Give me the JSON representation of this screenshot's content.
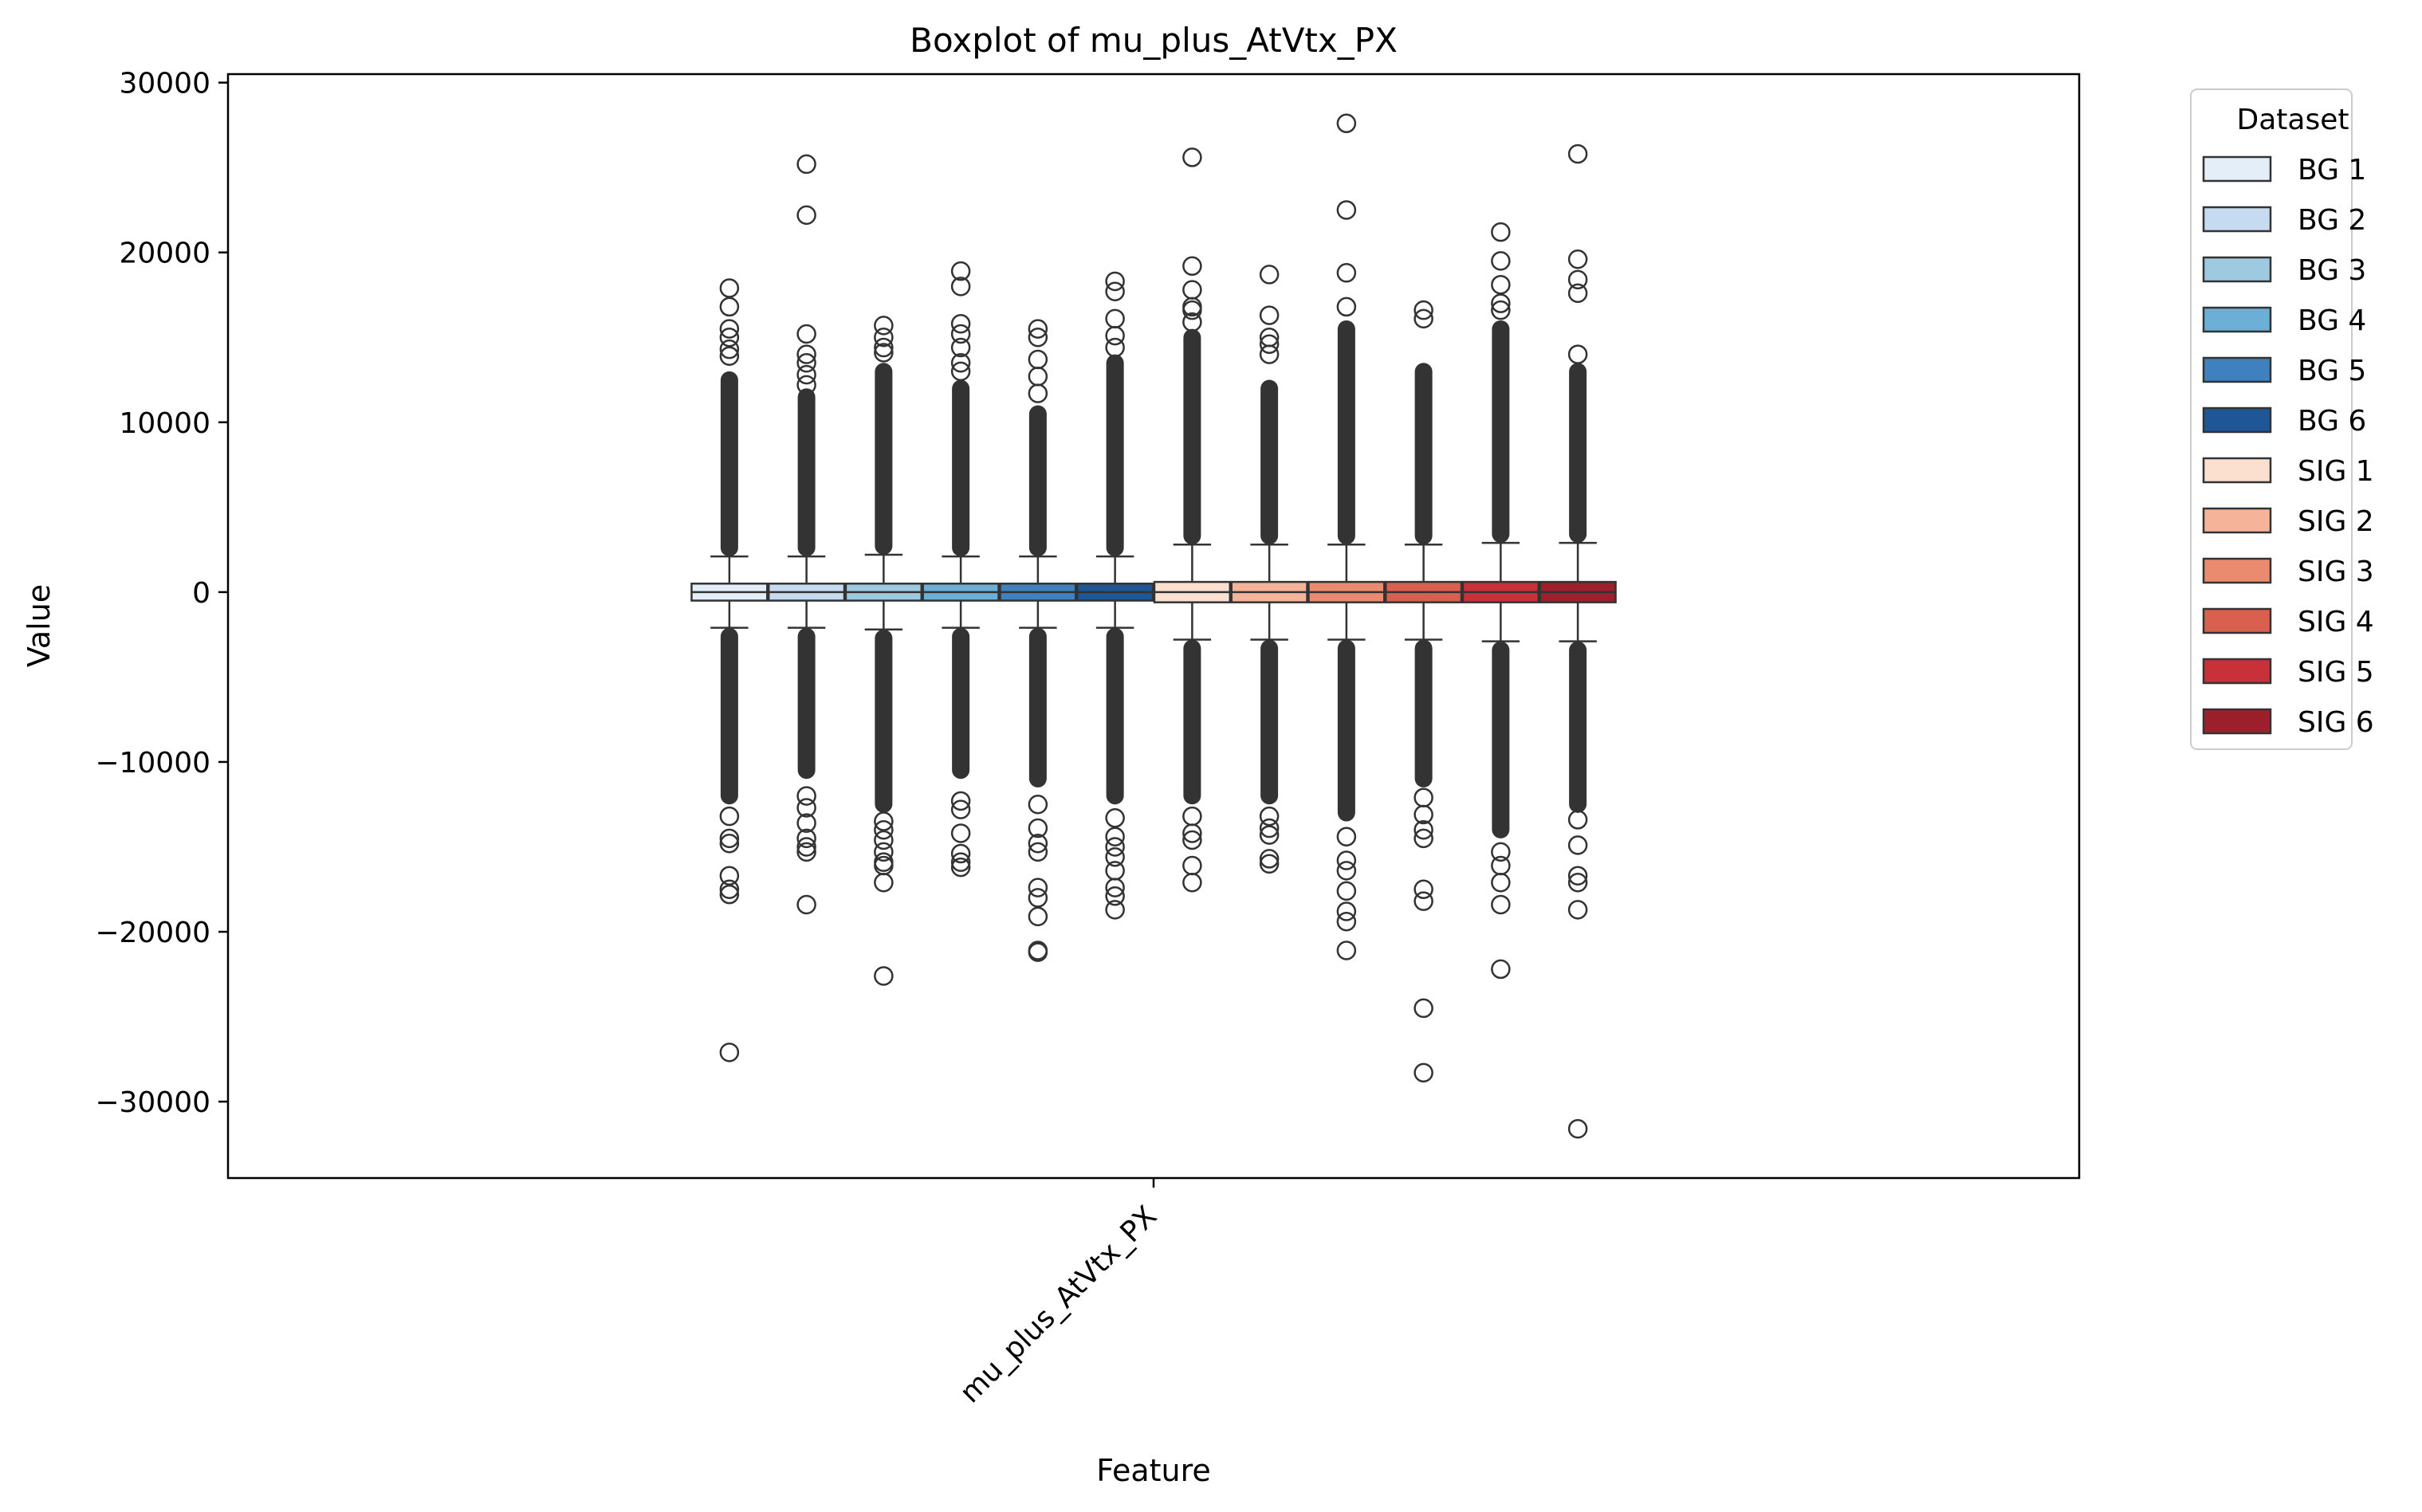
{
  "chart_data": {
    "type": "boxplot",
    "title": "Boxplot of mu_plus_AtVtx_PX",
    "xlabel": "Feature",
    "ylabel": "Value",
    "categories": [
      "mu_plus_AtVtx_PX"
    ],
    "ylim": [
      -34500,
      30500
    ],
    "yticks": [
      30000,
      20000,
      10000,
      0,
      -10000,
      -20000,
      -30000
    ],
    "ytick_labels": [
      "30000",
      "20000",
      "10000",
      "0",
      "−10000",
      "−20000",
      "−30000"
    ],
    "grid": false,
    "legend": {
      "title": "Dataset",
      "placement": "outside-top-right"
    },
    "series": [
      {
        "name": "BG 1",
        "color": "#e4eef9",
        "q1": -500,
        "median": 0,
        "q3": 500,
        "whisker_low": -2100,
        "whisker_high": 2100,
        "dense_low": [
          -12500,
          -2100
        ],
        "dense_high": [
          2100,
          13000
        ],
        "outliers": [
          17900,
          16800,
          15500,
          15000,
          14300,
          13900,
          -13200,
          -14500,
          -14800,
          -16700,
          -17500,
          -17800,
          -27100
        ]
      },
      {
        "name": "BG 2",
        "color": "#c6dbef",
        "q1": -500,
        "median": 0,
        "q3": 500,
        "whisker_low": -2100,
        "whisker_high": 2100,
        "dense_low": [
          -11000,
          -2100
        ],
        "dense_high": [
          2100,
          12000
        ],
        "outliers": [
          25200,
          22200,
          15200,
          14000,
          13500,
          12800,
          12200,
          -12000,
          -12700,
          -13600,
          -14500,
          -15000,
          -15300,
          -18400
        ]
      },
      {
        "name": "BG 3",
        "color": "#9ecae1",
        "q1": -500,
        "median": 0,
        "q3": 500,
        "whisker_low": -2200,
        "whisker_high": 2200,
        "dense_low": [
          -13000,
          -2200
        ],
        "dense_high": [
          2200,
          13500
        ],
        "outliers": [
          15700,
          15000,
          14400,
          14100,
          -13500,
          -14000,
          -14600,
          -15300,
          -15900,
          -16100,
          -17100,
          -22600
        ]
      },
      {
        "name": "BG 4",
        "color": "#6baed6",
        "q1": -500,
        "median": 0,
        "q3": 500,
        "whisker_low": -2100,
        "whisker_high": 2100,
        "dense_low": [
          -11000,
          -2100
        ],
        "dense_high": [
          2100,
          12500
        ],
        "outliers": [
          18900,
          18000,
          15800,
          15200,
          14400,
          13500,
          13000,
          -12300,
          -12800,
          -14200,
          -15400,
          -15900,
          -16200
        ]
      },
      {
        "name": "BG 5",
        "color": "#3f80bf",
        "q1": -500,
        "median": 0,
        "q3": 500,
        "whisker_low": -2100,
        "whisker_high": 2100,
        "dense_low": [
          -11500,
          -2100
        ],
        "dense_high": [
          2100,
          11000
        ],
        "outliers": [
          15500,
          15000,
          13700,
          12700,
          11700,
          -12500,
          -13900,
          -14800,
          -15300,
          -17400,
          -18000,
          -19100,
          -21100,
          -21200
        ]
      },
      {
        "name": "BG 6",
        "color": "#1f5695",
        "q1": -500,
        "median": 0,
        "q3": 500,
        "whisker_low": -2100,
        "whisker_high": 2100,
        "dense_low": [
          -12500,
          -2100
        ],
        "dense_high": [
          2100,
          14000
        ],
        "outliers": [
          18300,
          17700,
          16100,
          15100,
          14400,
          -13300,
          -14400,
          -15000,
          -15600,
          -16400,
          -17400,
          -17900,
          -18700
        ]
      },
      {
        "name": "SIG 1",
        "color": "#fbe0d0",
        "q1": -600,
        "median": 0,
        "q3": 600,
        "whisker_low": -2800,
        "whisker_high": 2800,
        "dense_low": [
          -12500,
          -2800
        ],
        "dense_high": [
          2800,
          15500
        ],
        "outliers": [
          25600,
          19200,
          17800,
          16800,
          16600,
          15900,
          -13200,
          -14200,
          -14600,
          -16100,
          -17100
        ]
      },
      {
        "name": "SIG 2",
        "color": "#f5b49a",
        "q1": -600,
        "median": 0,
        "q3": 600,
        "whisker_low": -2800,
        "whisker_high": 2800,
        "dense_low": [
          -12500,
          -2800
        ],
        "dense_high": [
          2800,
          12500
        ],
        "outliers": [
          18700,
          16300,
          15000,
          14600,
          14000,
          -13200,
          -13900,
          -14300,
          -15700,
          -16000
        ]
      },
      {
        "name": "SIG 3",
        "color": "#ea8a6e",
        "q1": -600,
        "median": 0,
        "q3": 600,
        "whisker_low": -2800,
        "whisker_high": 2800,
        "dense_low": [
          -13500,
          -2800
        ],
        "dense_high": [
          2800,
          16000
        ],
        "outliers": [
          27600,
          22500,
          18800,
          16800,
          -14400,
          -15800,
          -16400,
          -17600,
          -18800,
          -19400,
          -21100
        ]
      },
      {
        "name": "SIG 4",
        "color": "#d9604e",
        "q1": -600,
        "median": 0,
        "q3": 600,
        "whisker_low": -2800,
        "whisker_high": 2800,
        "dense_low": [
          -11500,
          -2800
        ],
        "dense_high": [
          2800,
          13500
        ],
        "outliers": [
          16600,
          16100,
          -12100,
          -13100,
          -14000,
          -14500,
          -17500,
          -18200,
          -24500,
          -28300
        ]
      },
      {
        "name": "SIG 5",
        "color": "#c8313a",
        "q1": -600,
        "median": 0,
        "q3": 600,
        "whisker_low": -2900,
        "whisker_high": 2900,
        "dense_low": [
          -14500,
          -2900
        ],
        "dense_high": [
          2900,
          16000
        ],
        "outliers": [
          21200,
          19500,
          18100,
          17000,
          16600,
          -15300,
          -16100,
          -17100,
          -18400,
          -22200
        ]
      },
      {
        "name": "SIG 6",
        "color": "#9e1f2c",
        "q1": -600,
        "median": 0,
        "q3": 600,
        "whisker_low": -2900,
        "whisker_high": 2900,
        "dense_low": [
          -13000,
          -2900
        ],
        "dense_high": [
          2900,
          13500
        ],
        "outliers": [
          25800,
          19600,
          18400,
          17600,
          14000,
          -13400,
          -14900,
          -16700,
          -17100,
          -18700,
          -31600
        ]
      }
    ]
  }
}
